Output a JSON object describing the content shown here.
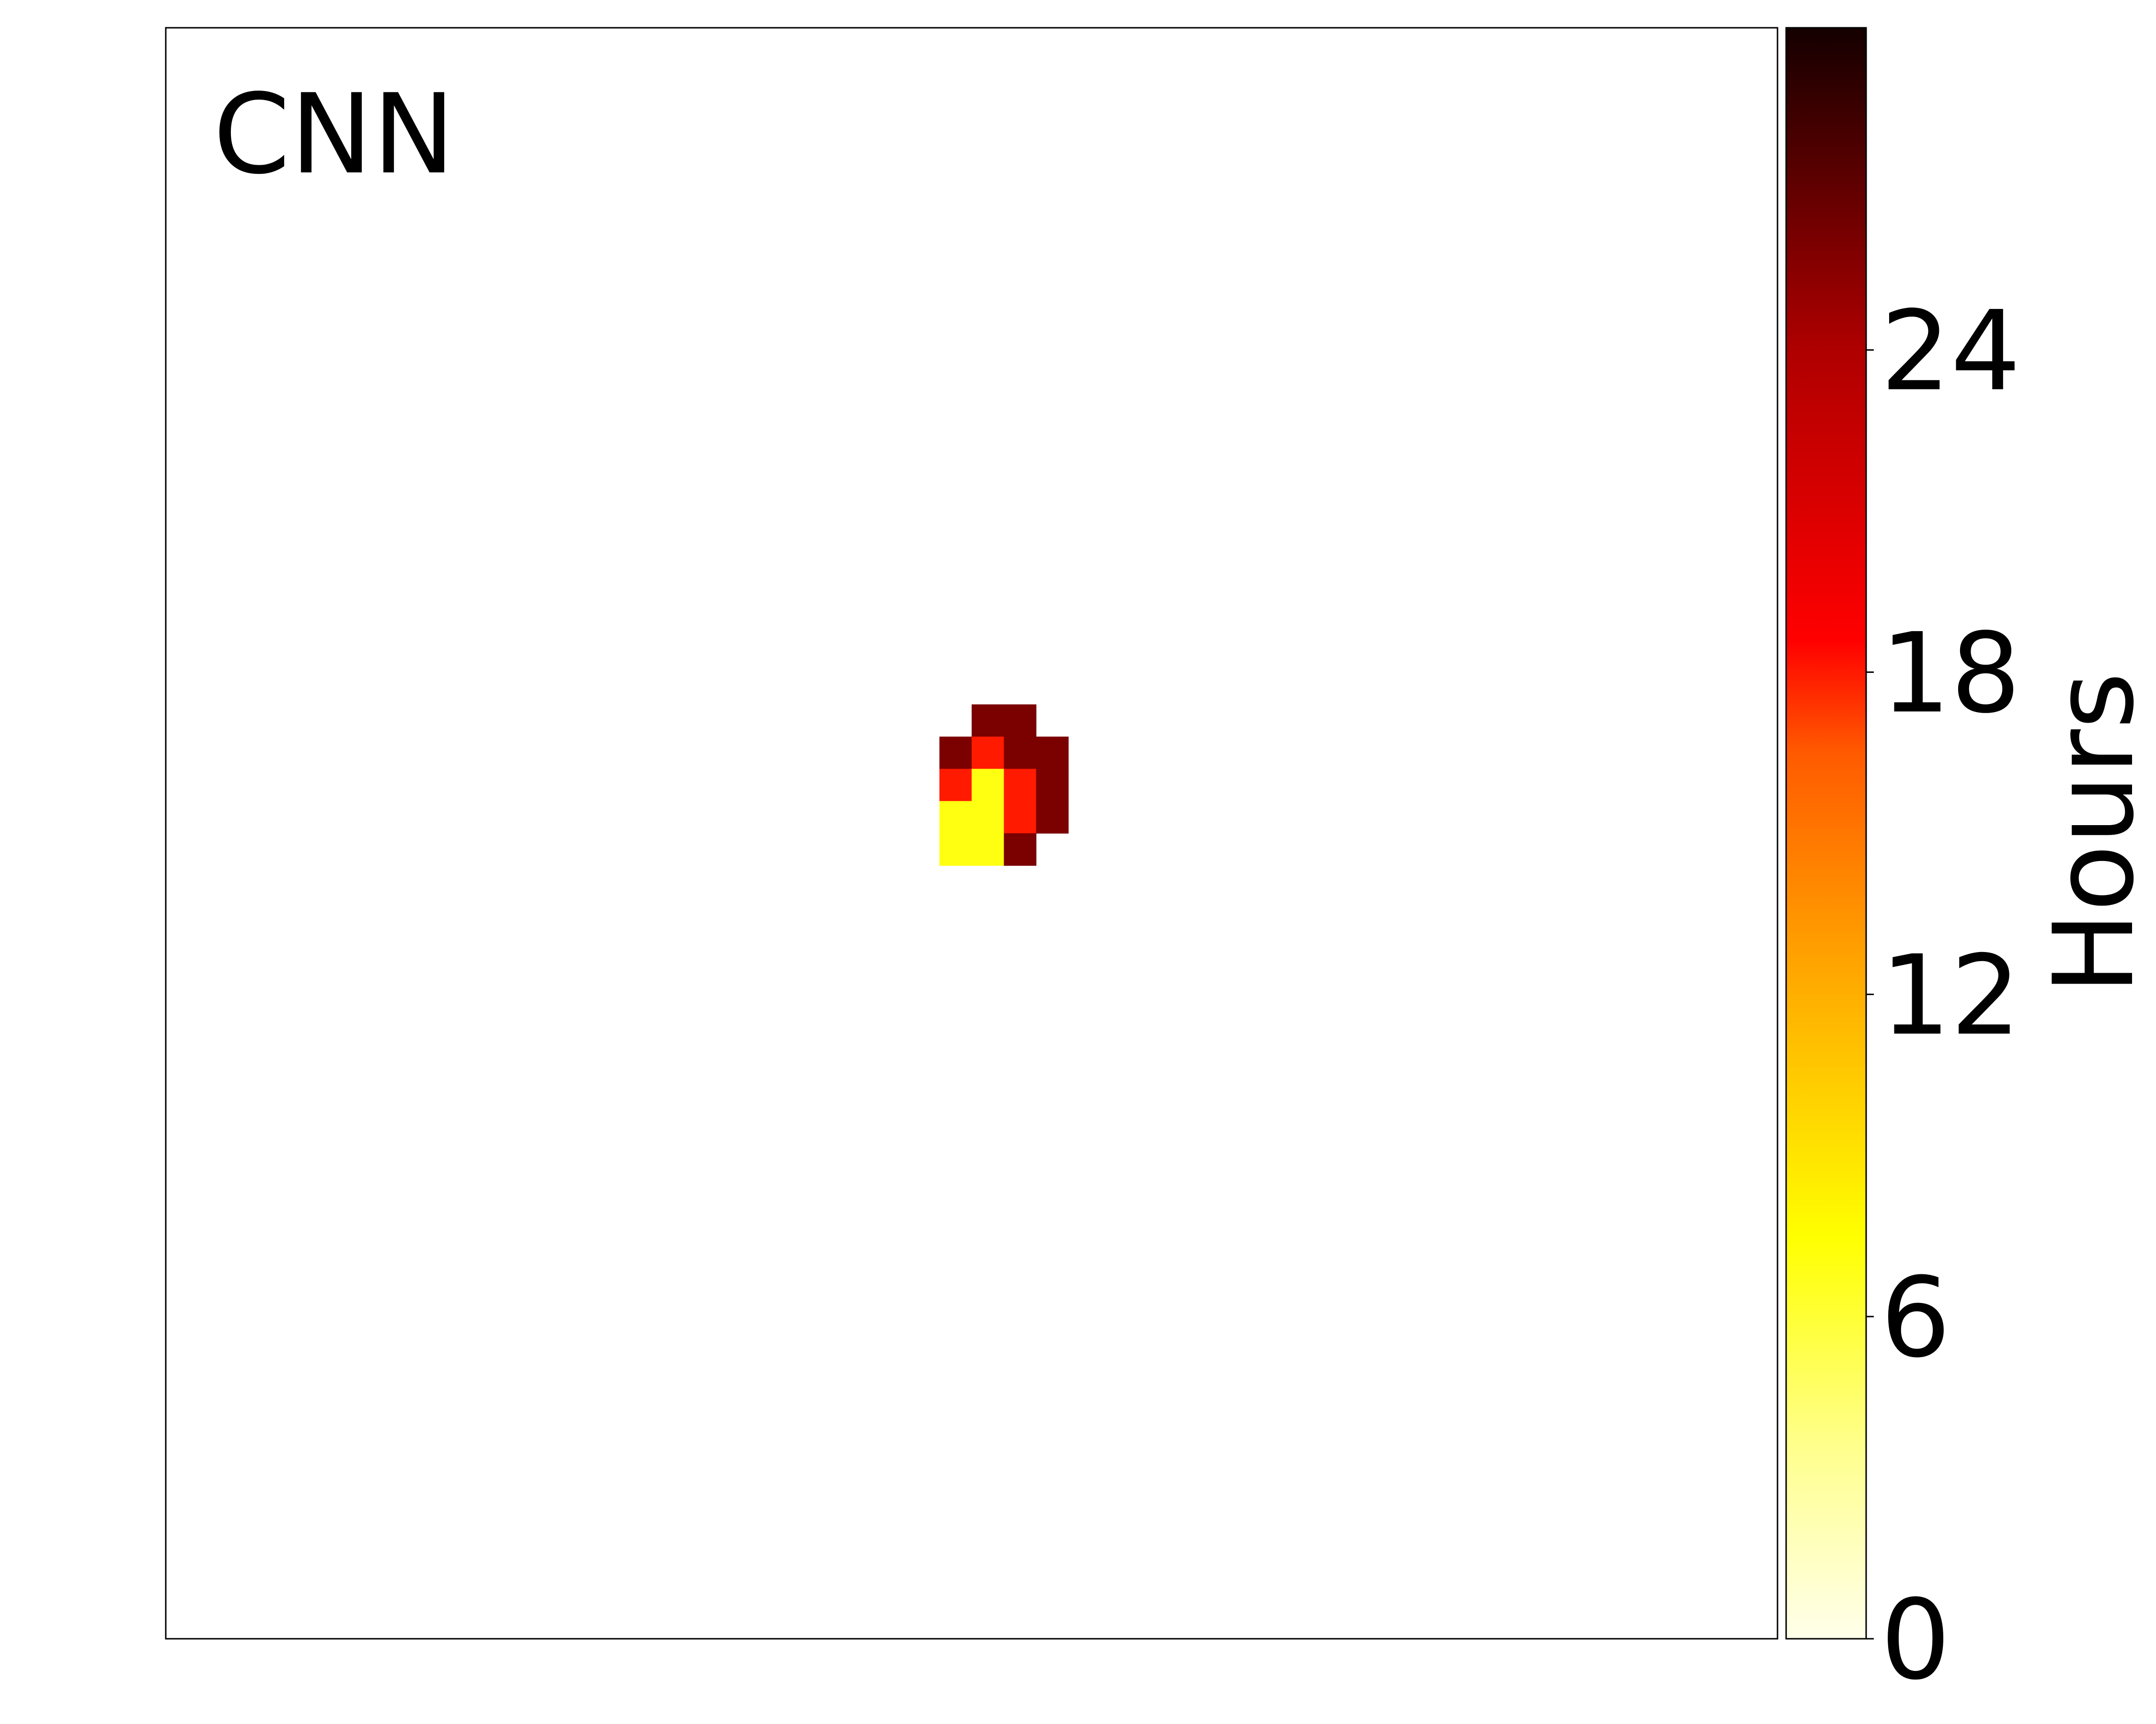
{
  "chart_data": {
    "type": "heatmap",
    "annotation": "CNN",
    "colorbar": {
      "label": "Hours",
      "range": [
        0,
        30
      ],
      "ticks": [
        0,
        6,
        12,
        18,
        24
      ],
      "tick_labels": [
        "0",
        "6",
        "12",
        "18",
        "24"
      ],
      "colormap": "hot_r"
    },
    "grid": {
      "rows": 50,
      "cols": 50,
      "cells": [
        {
          "row": 21,
          "col": 25,
          "value": 26
        },
        {
          "row": 21,
          "col": 26,
          "value": 26
        },
        {
          "row": 22,
          "col": 24,
          "value": 26
        },
        {
          "row": 22,
          "col": 25,
          "value": 18
        },
        {
          "row": 22,
          "col": 26,
          "value": 26
        },
        {
          "row": 22,
          "col": 27,
          "value": 26
        },
        {
          "row": 23,
          "col": 24,
          "value": 18
        },
        {
          "row": 23,
          "col": 25,
          "value": 7
        },
        {
          "row": 23,
          "col": 26,
          "value": 18
        },
        {
          "row": 23,
          "col": 27,
          "value": 26
        },
        {
          "row": 24,
          "col": 24,
          "value": 7
        },
        {
          "row": 24,
          "col": 25,
          "value": 7
        },
        {
          "row": 24,
          "col": 26,
          "value": 18
        },
        {
          "row": 24,
          "col": 27,
          "value": 26
        },
        {
          "row": 25,
          "col": 24,
          "value": 7
        },
        {
          "row": 25,
          "col": 25,
          "value": 7
        },
        {
          "row": 25,
          "col": 26,
          "value": 26
        }
      ]
    },
    "grid_lines": false,
    "axes_ticks": false
  }
}
